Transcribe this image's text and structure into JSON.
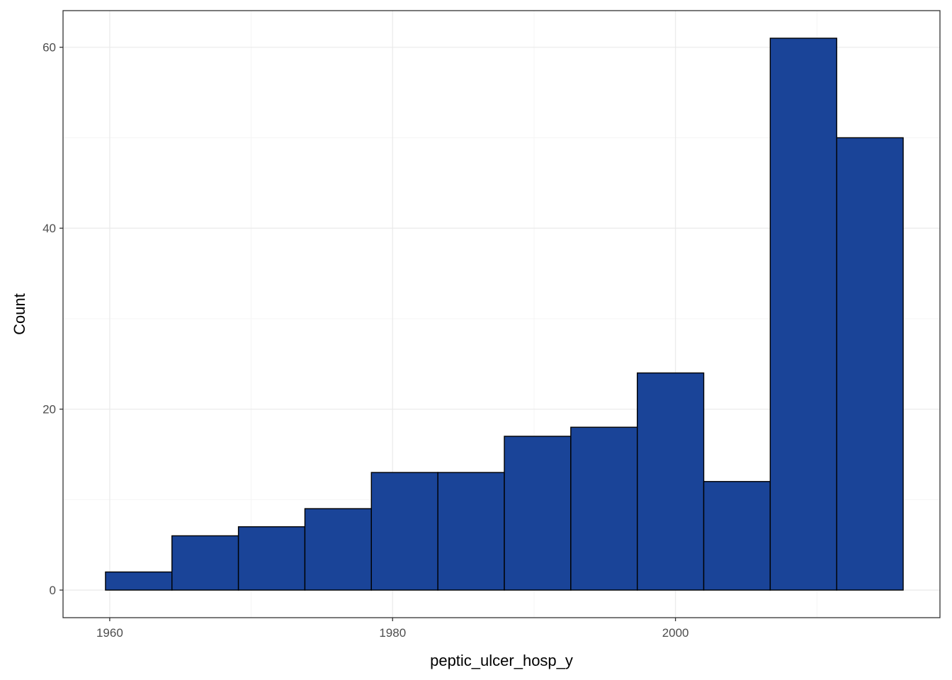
{
  "chart_data": {
    "type": "bar",
    "subtype": "histogram",
    "xlabel": "peptic_ulcer_hosp_y",
    "ylabel": "Count",
    "x_ticks": [
      1960,
      1980,
      2000
    ],
    "y_ticks": [
      0,
      20,
      40,
      60
    ],
    "xlim": [
      1956.7,
      2018.7
    ],
    "ylim": [
      -3.05,
      64.05
    ],
    "bin_edges": [
      1959.7,
      1964.4,
      1969.1,
      1973.8,
      1978.5,
      1983.2,
      1987.9,
      1992.6,
      1997.3,
      2002.0,
      2006.7,
      2011.4,
      2016.1
    ],
    "values": [
      2,
      6,
      7,
      9,
      13,
      13,
      17,
      18,
      24,
      12,
      61,
      50
    ],
    "grid": true,
    "theme": "bw",
    "colors": {
      "bar_fill": "#1A4498",
      "bar_stroke": "#000000",
      "grid_major": "#EBEBEB",
      "grid_minor": "#F5F5F5",
      "panel_border": "#333333",
      "tick_text": "#4D4D4D"
    }
  }
}
